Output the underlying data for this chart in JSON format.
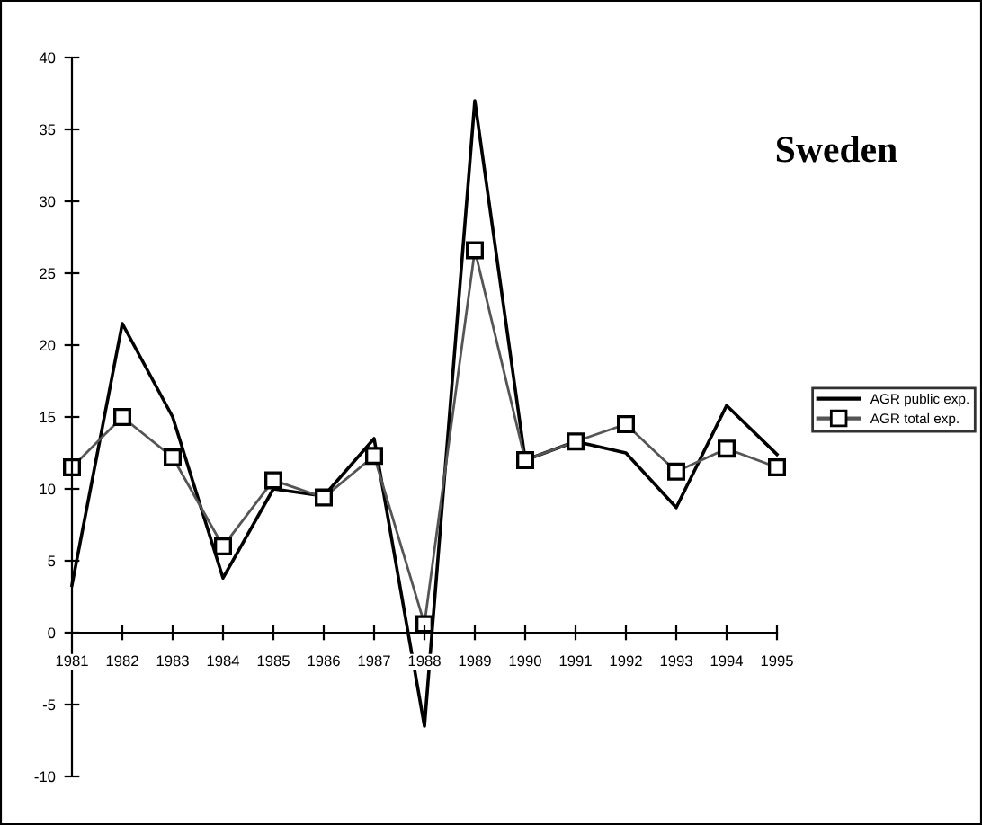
{
  "chart_data": {
    "type": "line",
    "title": "Sweden",
    "categories": [
      "1981",
      "1982",
      "1983",
      "1984",
      "1985",
      "1986",
      "1987",
      "1988",
      "1989",
      "1990",
      "1991",
      "1992",
      "1993",
      "1994",
      "1995"
    ],
    "series": [
      {
        "name": "AGR public exp.",
        "color": "#000000",
        "marker": "none",
        "values": [
          3.3,
          21.5,
          15,
          3.8,
          10,
          9.5,
          13.5,
          -6.5,
          37,
          12,
          13.3,
          12.5,
          8.7,
          15.8,
          12.4
        ]
      },
      {
        "name": "AGR total exp.",
        "color": "#555555",
        "marker": "square",
        "values": [
          11.5,
          15,
          12.2,
          6,
          10.6,
          9.4,
          12.3,
          0.6,
          26.6,
          12,
          13.3,
          14.5,
          11.2,
          12.8,
          11.5
        ]
      }
    ],
    "ylim": [
      -10,
      40
    ],
    "yticks": [
      -10,
      -5,
      0,
      5,
      10,
      15,
      20,
      25,
      30,
      35,
      40
    ],
    "grid": false,
    "legend": "right",
    "line_style": "solid"
  }
}
